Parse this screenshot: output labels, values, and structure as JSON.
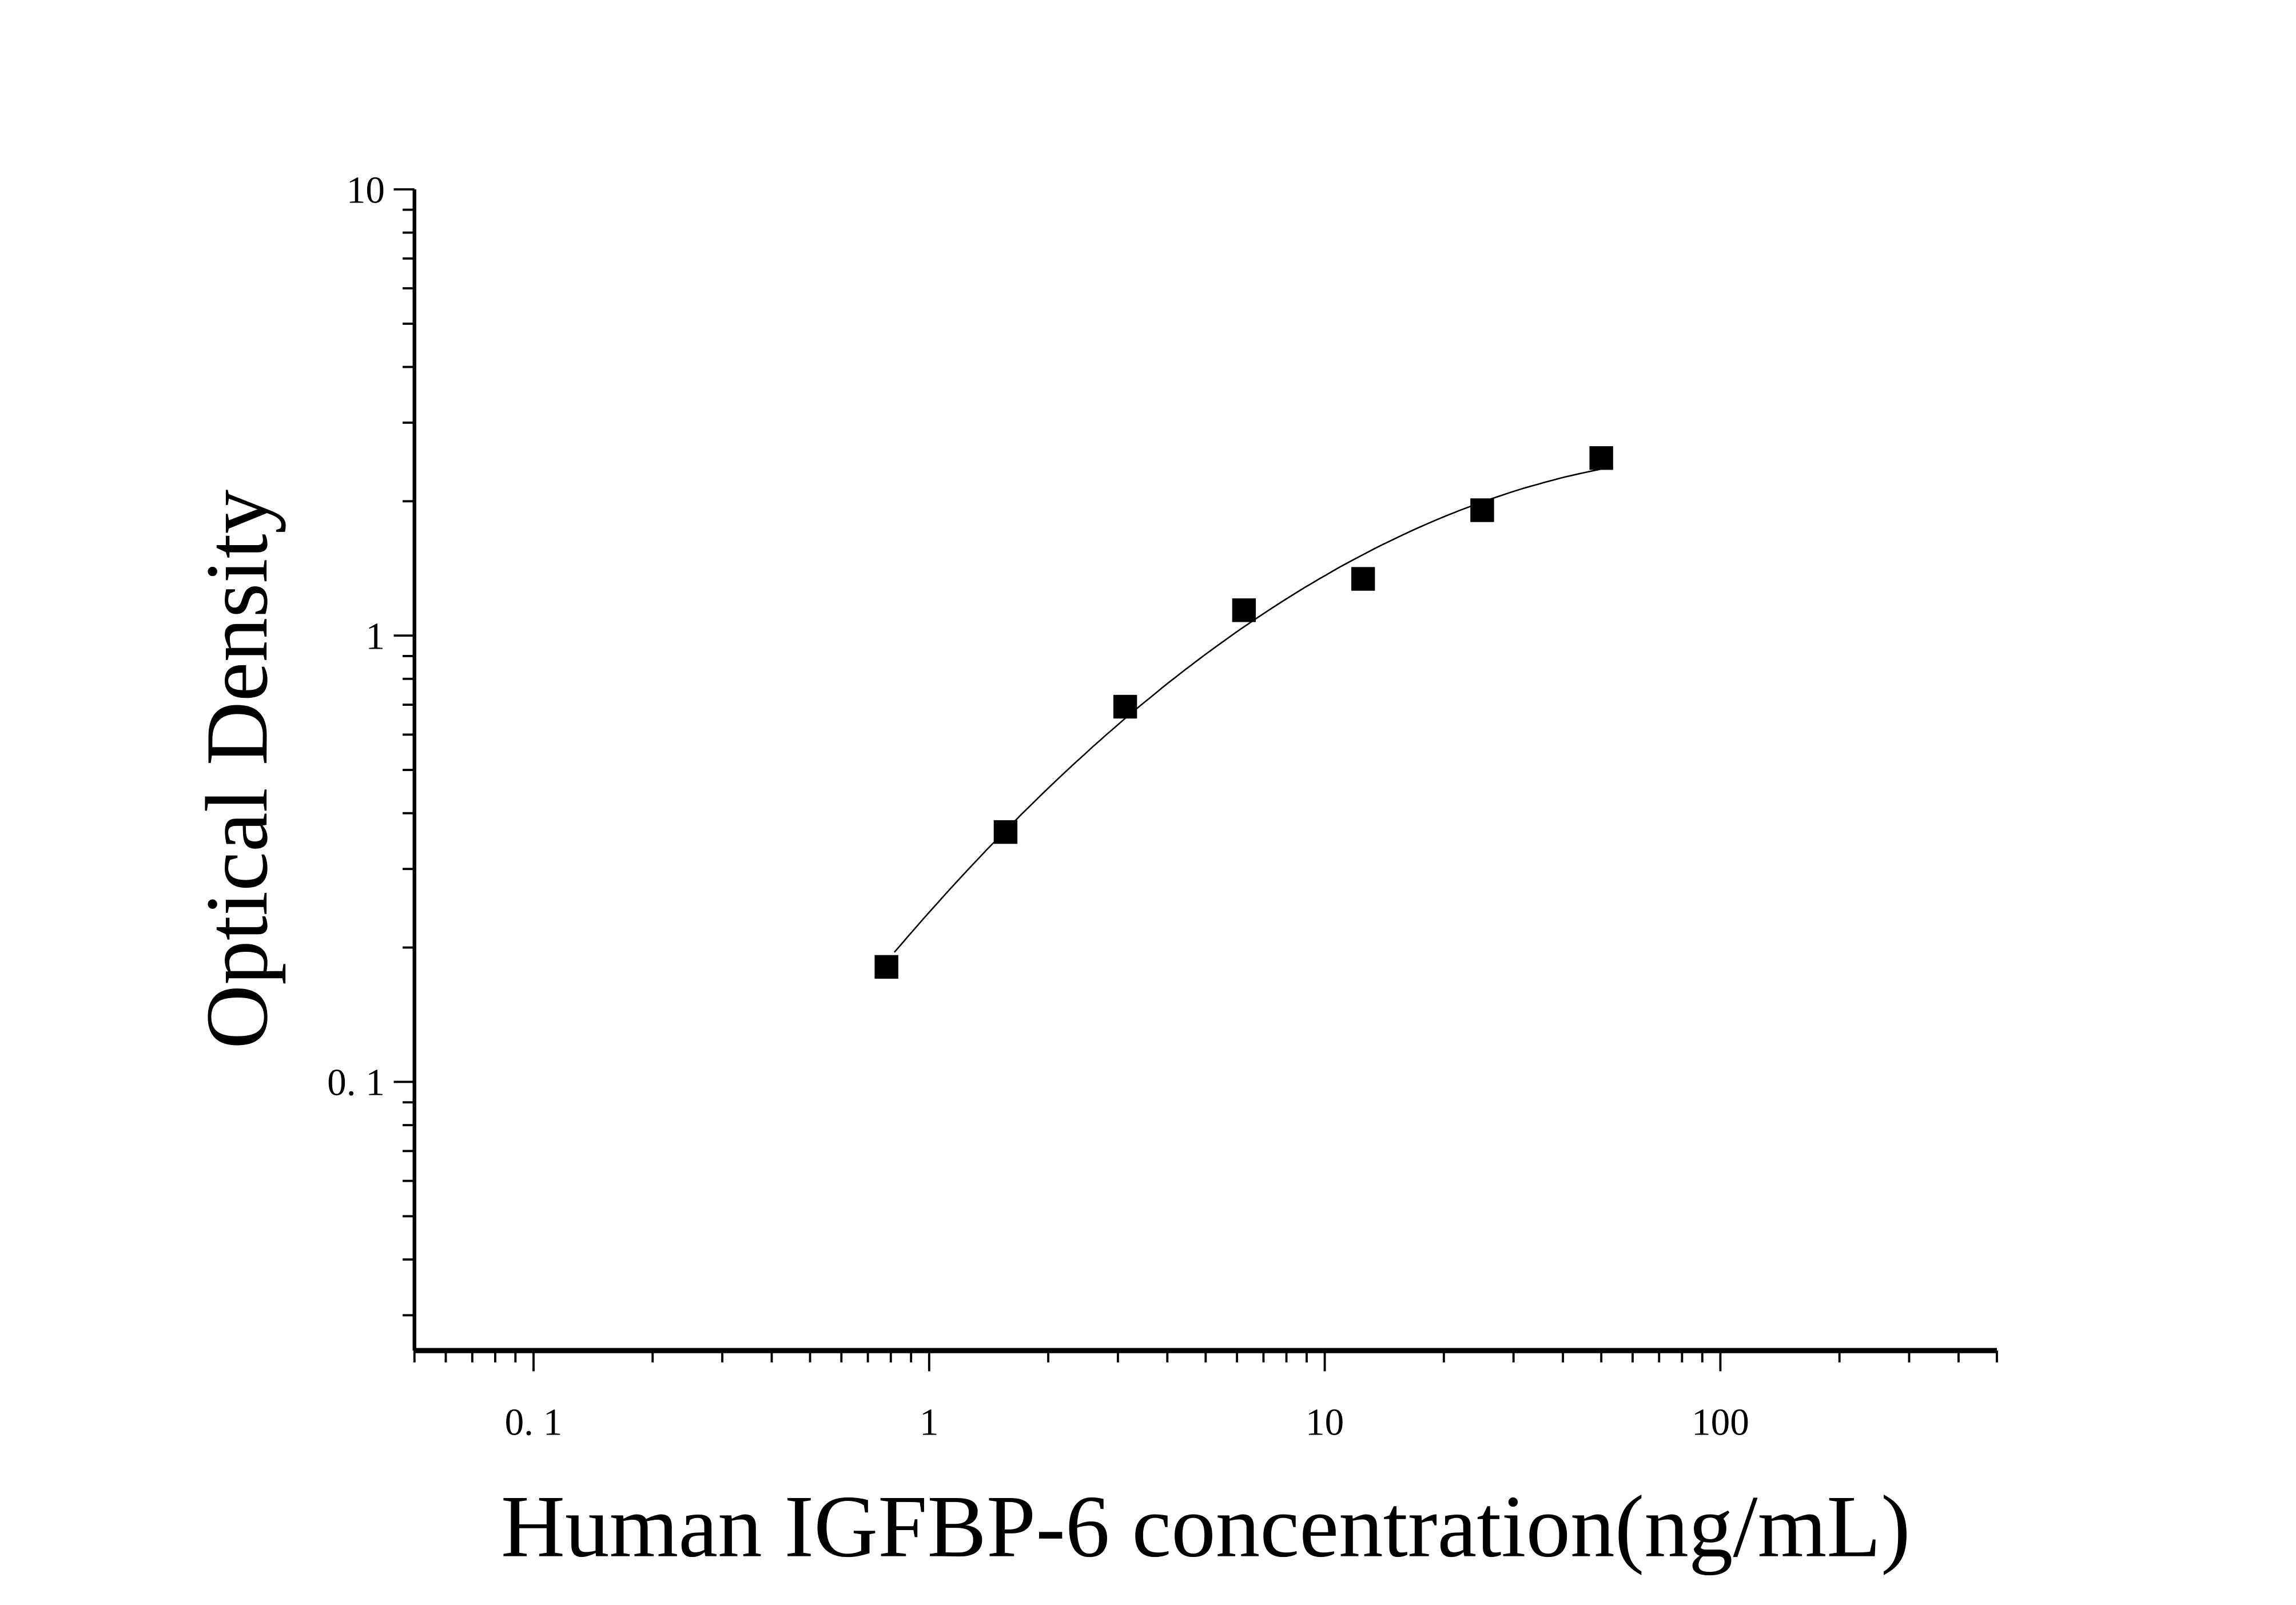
{
  "chart_data": {
    "type": "scatter",
    "title": "",
    "xlabel": "Human IGFBP-6 concentration(ng/mL)",
    "ylabel": "Optical Density",
    "x_scale": "log",
    "y_scale": "log",
    "xlim": [
      0.05,
      500
    ],
    "ylim": [
      0.025,
      10
    ],
    "x_tick_labels": [
      "0. 1",
      "1",
      "10",
      "100"
    ],
    "x_tick_values": [
      0.1,
      1,
      10,
      100
    ],
    "y_tick_labels": [
      "0. 1",
      "1",
      "10"
    ],
    "y_tick_values": [
      0.1,
      1,
      10
    ],
    "grid": false,
    "marker": "square",
    "color": "#000000",
    "fit_curve": true,
    "series": [
      {
        "x": [
          0.78,
          1.56,
          3.13,
          6.25,
          12.5,
          25,
          50
        ],
        "y": [
          0.181,
          0.363,
          0.693,
          1.14,
          1.34,
          1.91,
          2.5
        ]
      }
    ]
  }
}
